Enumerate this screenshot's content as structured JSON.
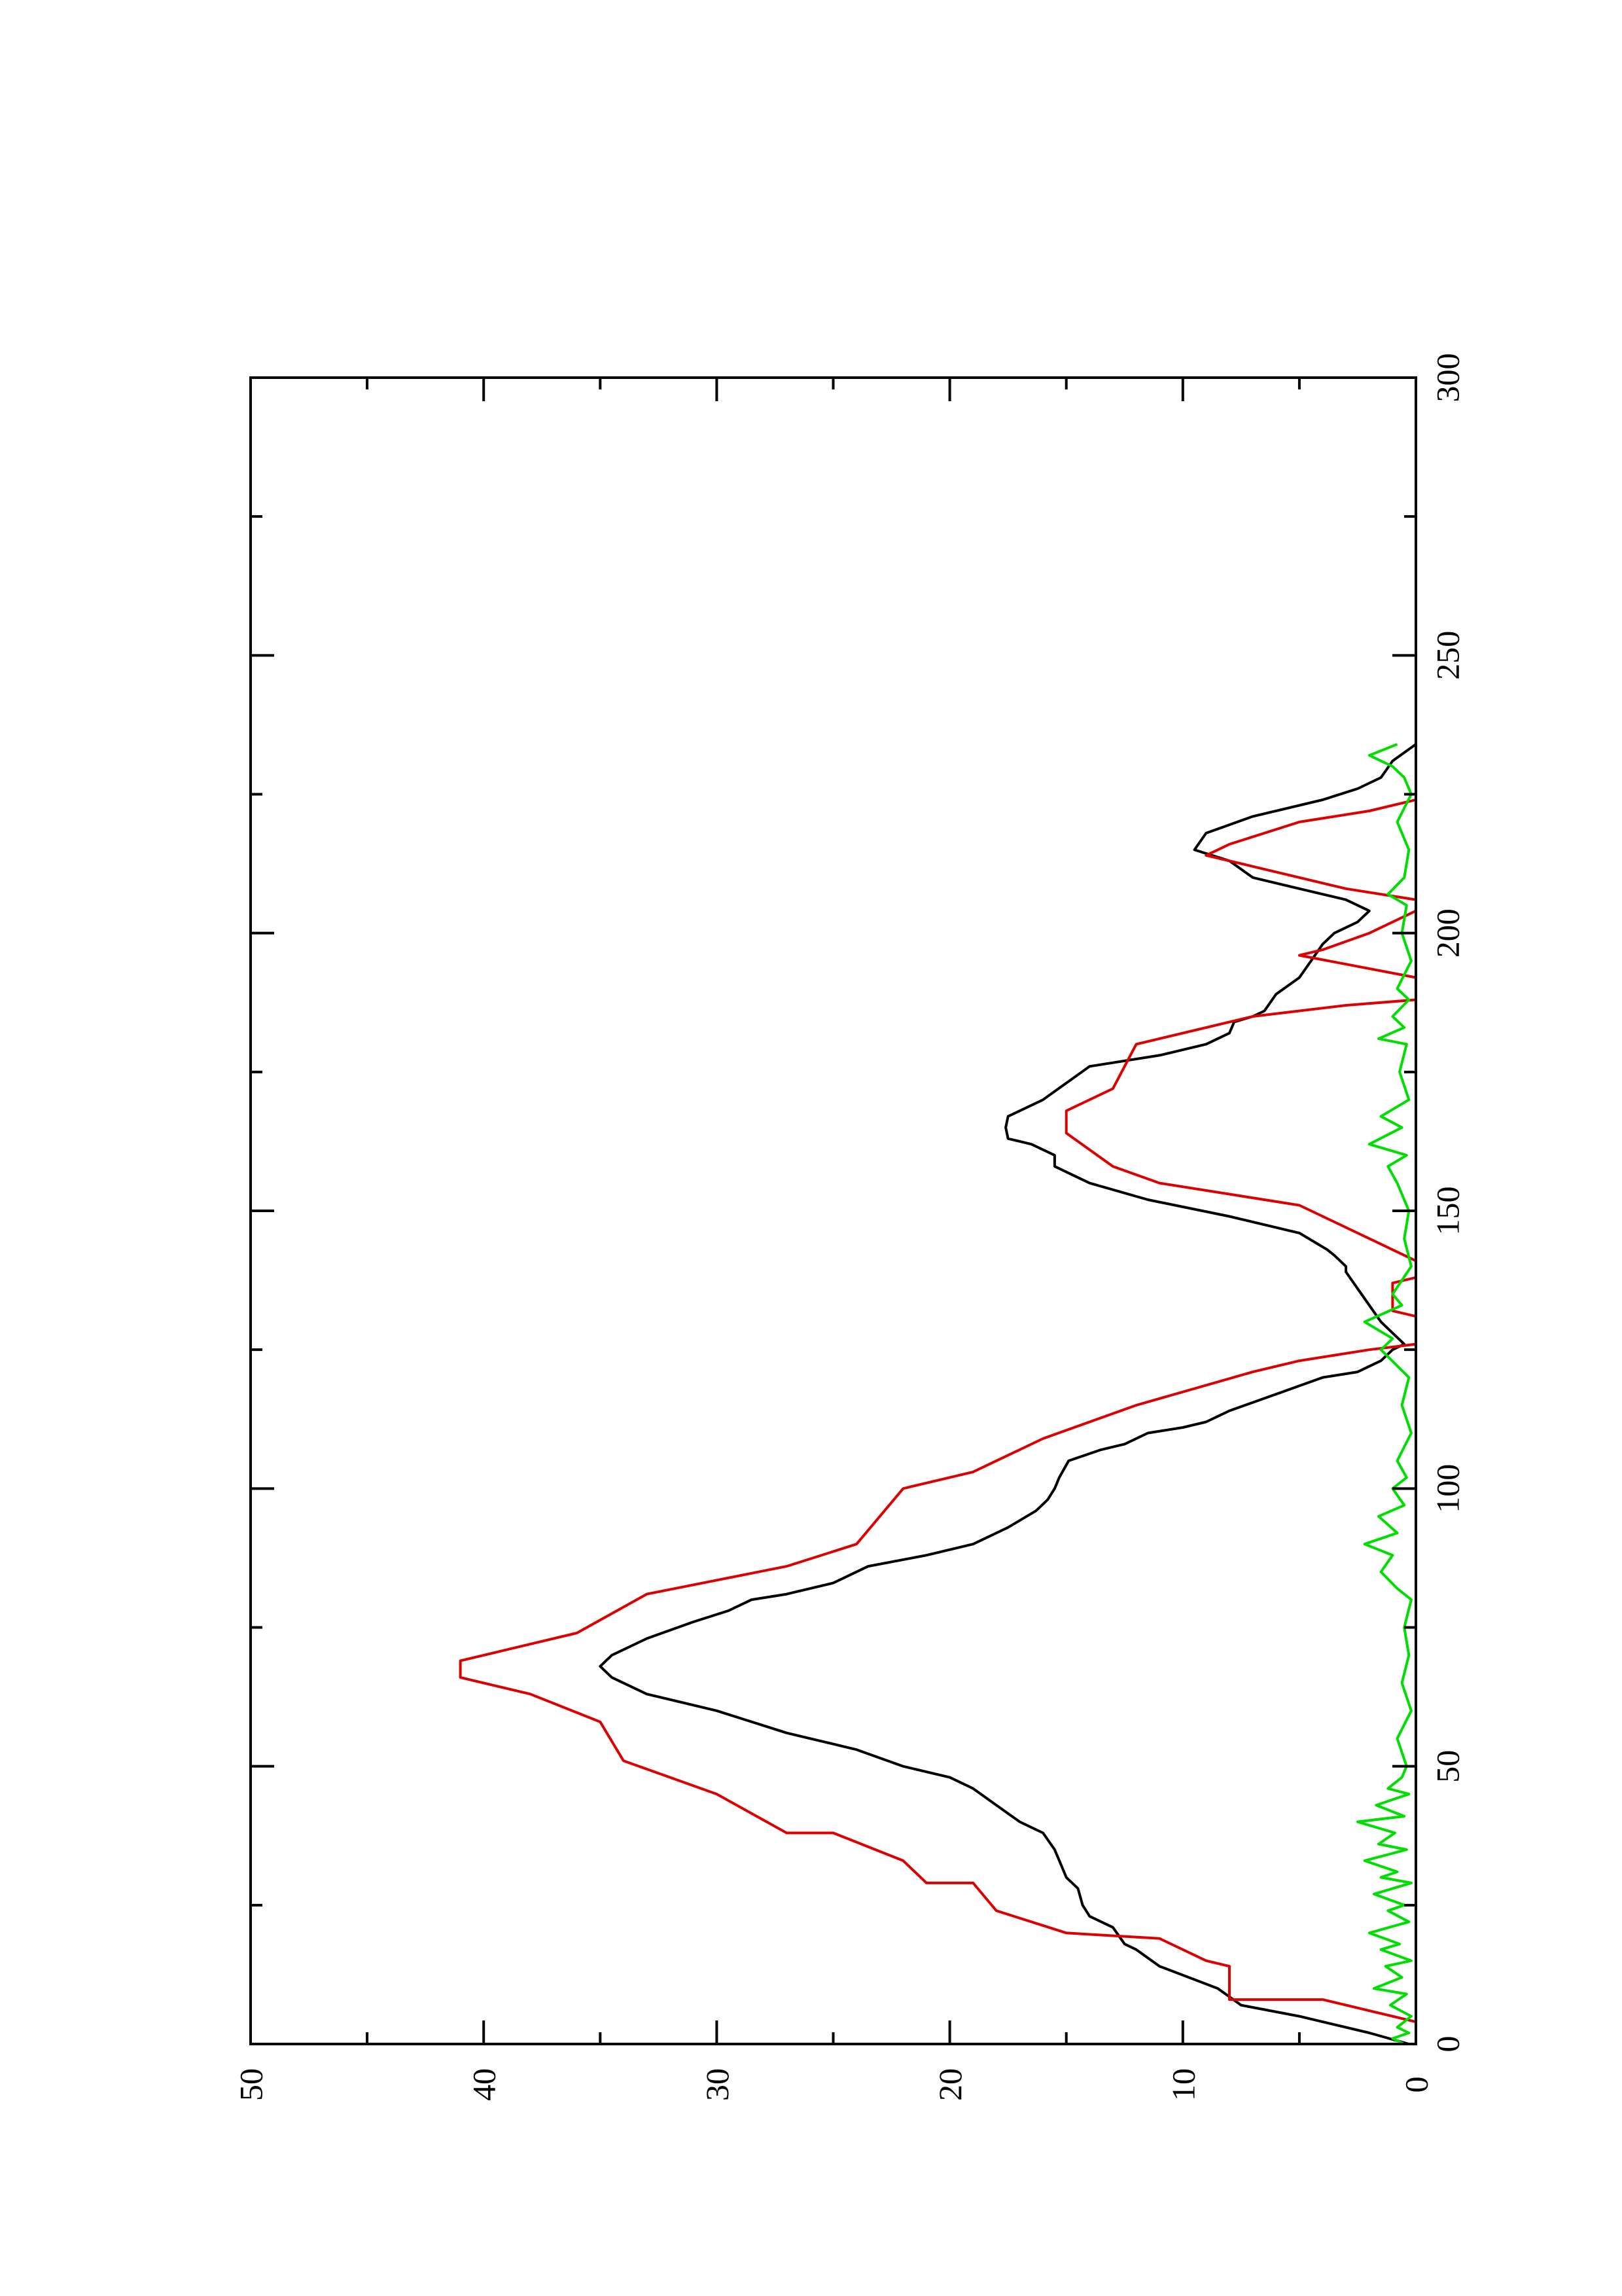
{
  "chart_data": {
    "type": "line",
    "title": "",
    "xlabel": "",
    "ylabel": "",
    "xlim": [
      0,
      300
    ],
    "ylim": [
      0,
      50
    ],
    "x_ticks": [
      "0",
      "50",
      "100",
      "150",
      "200",
      "250",
      "300"
    ],
    "y_ticks": [
      "0",
      "10",
      "20",
      "30",
      "40",
      "50"
    ],
    "orientation": "rotated 90° counter-clockwise on page",
    "grid": false,
    "legend": "none",
    "series": [
      {
        "color": "#000000",
        "x": [
          0,
          2,
          5,
          7,
          10,
          14,
          17,
          18,
          21,
          23,
          25,
          28,
          30,
          32,
          35,
          38,
          40,
          43,
          46,
          48,
          50,
          53,
          56,
          60,
          63,
          66,
          68,
          70,
          73,
          76,
          78,
          80,
          81,
          83,
          86,
          88,
          90,
          93,
          96,
          98,
          100,
          102,
          105,
          107,
          108,
          110,
          111,
          112,
          114,
          117,
          120,
          121,
          123,
          125,
          126,
          128,
          130,
          133,
          136,
          139,
          140,
          142,
          143,
          146,
          149,
          152,
          155,
          158,
          160,
          162,
          163,
          165,
          167,
          170,
          173,
          176,
          178,
          180,
          182,
          184,
          185,
          186,
          189,
          192,
          195,
          198,
          200,
          202,
          204,
          206,
          208,
          210,
          213,
          215,
          218,
          221,
          224,
          226,
          228,
          231,
          234
        ],
        "y": [
          0.3,
          2,
          5,
          7.5,
          8.5,
          11,
          12,
          12.5,
          13,
          14,
          14.3,
          14.5,
          15,
          15.2,
          15.5,
          16,
          17,
          18,
          19,
          20,
          22,
          24,
          27,
          30,
          33,
          34.5,
          35,
          34.5,
          33,
          31,
          29.5,
          28.5,
          27,
          25,
          23.5,
          21,
          19,
          17.5,
          16.3,
          15.8,
          15.5,
          15.3,
          14.9,
          13.5,
          12.5,
          11.5,
          10,
          9,
          8,
          6,
          4,
          2.5,
          1.5,
          1,
          0.5,
          1,
          1.5,
          2,
          2.5,
          3,
          3,
          3.5,
          3.8,
          5,
          8,
          11.5,
          14,
          15.5,
          15.5,
          16.5,
          17.5,
          17.6,
          17.5,
          16,
          15,
          14,
          11,
          9,
          8,
          7.8,
          7,
          6.5,
          6,
          5,
          4.5,
          4,
          3.5,
          2.5,
          2,
          3,
          5,
          7,
          8,
          9.5,
          9,
          7,
          4,
          2.5,
          1.5,
          1,
          0
        ]
      },
      {
        "color": "#dd0000",
        "x": [
          0,
          4,
          8,
          8,
          14,
          15,
          19,
          20,
          24,
          29,
          29,
          33,
          38,
          38,
          45,
          51,
          58,
          63,
          66,
          69,
          74,
          81,
          86,
          90,
          100,
          103,
          109,
          115,
          121,
          123,
          125,
          126,
          130,
          131,
          132,
          137,
          138,
          141,
          143,
          151,
          155,
          158,
          164,
          168,
          172,
          180,
          185,
          187,
          188,
          192,
          196,
          197,
          200,
          204,
          206,
          208,
          212,
          214,
          216,
          220,
          222,
          224,
          226,
          300
        ],
        "y": [
          0,
          0,
          4,
          8,
          8,
          9,
          11,
          15,
          18,
          19,
          21,
          22,
          25,
          27,
          30,
          34,
          35,
          38,
          41,
          41,
          36,
          33,
          27,
          24,
          22,
          19,
          16,
          12,
          7,
          5,
          2,
          0,
          0,
          0,
          1,
          1,
          0,
          0,
          1,
          5,
          11,
          13,
          15,
          15,
          13,
          12,
          7,
          3,
          0,
          0,
          5,
          4,
          2,
          0,
          0,
          3,
          7,
          9,
          8,
          5,
          2,
          0,
          0,
          0
        ]
      },
      {
        "color": "#00dd00",
        "x": [
          0,
          1,
          2,
          3,
          5,
          7,
          9,
          10,
          12,
          14,
          15,
          17,
          18,
          20,
          22,
          24,
          25,
          27,
          29,
          30,
          31,
          33,
          35,
          36,
          38,
          40,
          41,
          43,
          45,
          46,
          48,
          50,
          55,
          60,
          65,
          70,
          75,
          80,
          82,
          85,
          88,
          90,
          92,
          95,
          97,
          100,
          102,
          105,
          110,
          115,
          120,
          125,
          127,
          130,
          133,
          135,
          140,
          145,
          150,
          155,
          158,
          160,
          162,
          165,
          167,
          170,
          175,
          180,
          181,
          183,
          185,
          188,
          190,
          195,
          200,
          205,
          207,
          210,
          215,
          220,
          225,
          228,
          230,
          232,
          234
        ],
        "y": [
          0.5,
          1,
          0.3,
          0.8,
          0.2,
          1.1,
          0.4,
          1.8,
          0.6,
          1.3,
          0.2,
          1.5,
          0.7,
          2.0,
          0.3,
          1.2,
          0.5,
          1.8,
          0.2,
          1.5,
          0.8,
          2.2,
          0.4,
          1.6,
          0.9,
          2.5,
          0.5,
          1.7,
          0.3,
          1.2,
          0.6,
          0.4,
          0.8,
          0.2,
          0.6,
          0.3,
          0.5,
          0.2,
          0.8,
          1.5,
          1.0,
          2.2,
          0.8,
          1.6,
          0.5,
          1.0,
          0.4,
          0.8,
          0.2,
          0.6,
          0.3,
          1.5,
          1.0,
          2.2,
          0.6,
          1.0,
          0.2,
          0.5,
          0.3,
          0.8,
          1.2,
          0.4,
          2.0,
          0.6,
          1.5,
          0.3,
          0.7,
          0.4,
          1.6,
          0.5,
          1.0,
          0.3,
          0.8,
          0.2,
          0.6,
          0.4,
          1.2,
          0.5,
          0.3,
          0.8,
          0.2,
          0.5,
          1.0,
          2.0,
          0.8
        ]
      }
    ]
  }
}
